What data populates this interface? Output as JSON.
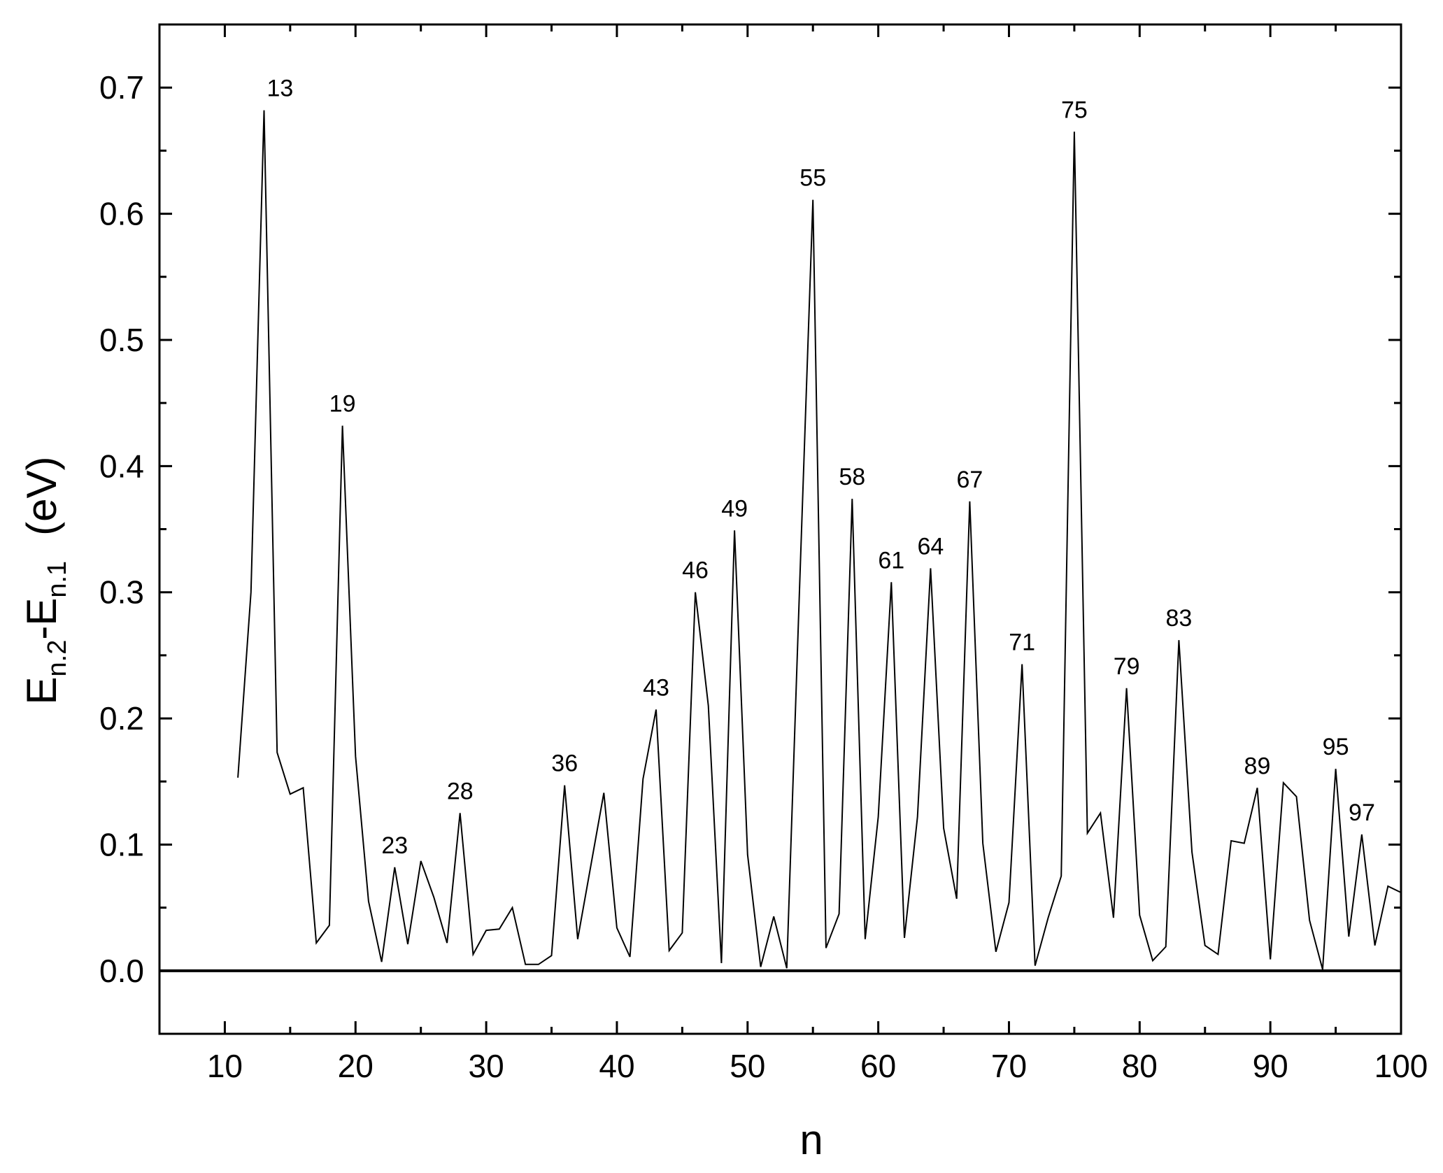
{
  "chart_data": {
    "type": "line",
    "title": "",
    "xlabel": "n",
    "ylabel": {
      "E1": "E",
      "sub1": "n.2",
      "dash": "-E",
      "sub2": "n.1",
      "unit": "(eV)"
    },
    "xlim": [
      5,
      100
    ],
    "ylim": [
      -0.05,
      0.75
    ],
    "xticks": [
      10,
      20,
      30,
      40,
      50,
      60,
      70,
      80,
      90,
      100
    ],
    "yticks": [
      0.0,
      0.1,
      0.2,
      0.3,
      0.4,
      0.5,
      0.6,
      0.7
    ],
    "ytick_labels": [
      "0.0",
      "0.1",
      "0.2",
      "0.3",
      "0.4",
      "0.5",
      "0.6",
      "0.7"
    ],
    "grid": false,
    "legend": "none",
    "zero_line": true,
    "line_color": "#000000",
    "series": [
      {
        "x": [
          11,
          12,
          13,
          14,
          15,
          16,
          17,
          18,
          19,
          20,
          21,
          22,
          23,
          24,
          25,
          26,
          27,
          28,
          29,
          30,
          31,
          32,
          33,
          34,
          35,
          36,
          37,
          38,
          39,
          40,
          41,
          42,
          43,
          44,
          45,
          46,
          47,
          48,
          49,
          50,
          51,
          52,
          53,
          54,
          55,
          56,
          57,
          58,
          59,
          60,
          61,
          62,
          63,
          64,
          65,
          66,
          67,
          68,
          69,
          70,
          71,
          72,
          73,
          74,
          75,
          76,
          77,
          78,
          79,
          80,
          81,
          82,
          83,
          84,
          85,
          86,
          87,
          88,
          89,
          90,
          91,
          92,
          93,
          94,
          95,
          96,
          97,
          98,
          99,
          100
        ],
        "values": [
          0.153,
          0.3,
          0.682,
          0.173,
          0.14,
          0.145,
          0.022,
          0.036,
          0.432,
          0.17,
          0.055,
          0.007,
          0.082,
          0.021,
          0.087,
          0.058,
          0.022,
          0.125,
          0.013,
          0.032,
          0.033,
          0.05,
          0.005,
          0.005,
          0.012,
          0.147,
          0.025,
          0.083,
          0.141,
          0.034,
          0.011,
          0.152,
          0.207,
          0.016,
          0.03,
          0.3,
          0.21,
          0.006,
          0.349,
          0.092,
          0.003,
          0.043,
          0.002,
          0.31,
          0.611,
          0.018,
          0.045,
          0.374,
          0.025,
          0.122,
          0.308,
          0.026,
          0.122,
          0.319,
          0.113,
          0.057,
          0.372,
          0.101,
          0.015,
          0.054,
          0.243,
          0.004,
          0.042,
          0.075,
          0.665,
          0.109,
          0.125,
          0.042,
          0.224,
          0.044,
          0.008,
          0.019,
          0.262,
          0.094,
          0.02,
          0.013,
          0.103,
          0.101,
          0.145,
          0.009,
          0.149,
          0.138,
          0.04,
          0.001,
          0.16,
          0.027,
          0.108,
          0.02,
          0.067,
          0.062
        ]
      }
    ],
    "annotations": [
      {
        "x": 13,
        "y": 0.682,
        "text": "13"
      },
      {
        "x": 19,
        "y": 0.432,
        "text": "19"
      },
      {
        "x": 23,
        "y": 0.082,
        "text": "23"
      },
      {
        "x": 28,
        "y": 0.125,
        "text": "28"
      },
      {
        "x": 36,
        "y": 0.147,
        "text": "36"
      },
      {
        "x": 43,
        "y": 0.207,
        "text": "43"
      },
      {
        "x": 46,
        "y": 0.3,
        "text": "46"
      },
      {
        "x": 49,
        "y": 0.349,
        "text": "49"
      },
      {
        "x": 55,
        "y": 0.611,
        "text": "55"
      },
      {
        "x": 58,
        "y": 0.374,
        "text": "58"
      },
      {
        "x": 61,
        "y": 0.308,
        "text": "61"
      },
      {
        "x": 64,
        "y": 0.319,
        "text": "64"
      },
      {
        "x": 67,
        "y": 0.372,
        "text": "67"
      },
      {
        "x": 71,
        "y": 0.243,
        "text": "71"
      },
      {
        "x": 75,
        "y": 0.665,
        "text": "75"
      },
      {
        "x": 79,
        "y": 0.224,
        "text": "79"
      },
      {
        "x": 83,
        "y": 0.262,
        "text": "83"
      },
      {
        "x": 89,
        "y": 0.145,
        "text": "89"
      },
      {
        "x": 95,
        "y": 0.16,
        "text": "95"
      },
      {
        "x": 97,
        "y": 0.108,
        "text": "97"
      }
    ]
  }
}
